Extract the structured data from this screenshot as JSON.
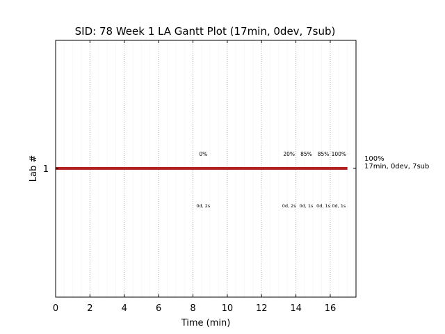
{
  "chart_data": {
    "type": "gantt",
    "title": "SID: 78 Week 1 LA Gantt Plot (17min, 0dev, 7sub)",
    "xlabel": "Time (min)",
    "ylabel": "Lab #",
    "xlim": [
      0,
      17.5
    ],
    "xticks": [
      0,
      2,
      4,
      6,
      8,
      10,
      12,
      14,
      16
    ],
    "major_grid_every": 2,
    "minor_grid_every": 0.5,
    "lab": 1,
    "bar": {
      "start": 0,
      "end": 17,
      "color": "#b22222"
    },
    "bar_summary": {
      "percent": "100%",
      "detail": "17min, 0dev, 7sub",
      "color": "#b22222"
    },
    "submissions": [
      {
        "x": 8.6,
        "score": "0%",
        "detail": "0d, 2s"
      },
      {
        "x": 13.6,
        "score": "20%",
        "detail": "0d, 2s"
      },
      {
        "x": 14.6,
        "score": "85%",
        "detail": "0d, 1s"
      },
      {
        "x": 15.6,
        "score": "85%",
        "detail": "0d, 1s"
      },
      {
        "x": 16.5,
        "score": "100%",
        "detail": "0d, 1s"
      }
    ]
  }
}
